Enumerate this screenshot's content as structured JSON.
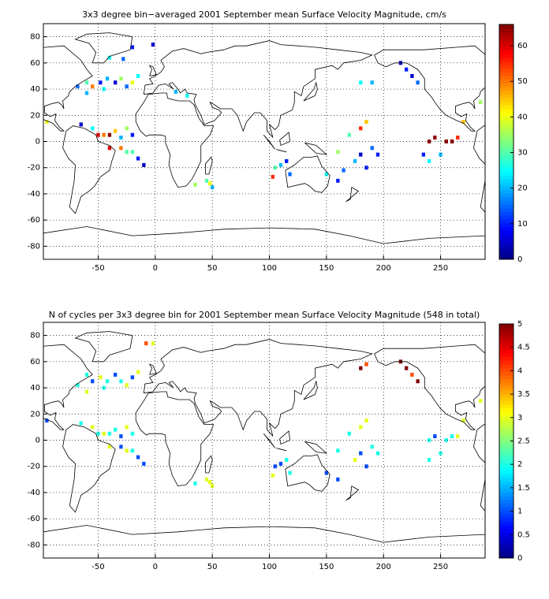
{
  "chart_data": [
    {
      "type": "grid-map",
      "title": "3x3 degree bin−averaged 2001 September mean Surface Velocity Magnitude, cm/s",
      "colormap": "jet",
      "grid": true,
      "xlim": [
        -98,
        289
      ],
      "ylim": [
        -90,
        90
      ],
      "xticks": [
        -50,
        0,
        50,
        100,
        150,
        200,
        250
      ],
      "yticks": [
        -80,
        -60,
        -40,
        -20,
        0,
        20,
        40,
        60,
        80
      ],
      "clim": [
        0,
        66
      ],
      "cticks": [
        0,
        10,
        20,
        30,
        40,
        50,
        60
      ],
      "x": [
        -40,
        -28,
        -20,
        -2,
        -60,
        -55,
        -48,
        -42,
        -35,
        -30,
        -25,
        -20,
        -15,
        -45,
        -60,
        -68,
        -95,
        -65,
        -55,
        -50,
        -45,
        -40,
        -35,
        -30,
        -25,
        -20,
        -40,
        -30,
        -25,
        -20,
        -15,
        -10,
        35,
        45,
        48,
        50,
        28,
        18,
        103,
        110,
        115,
        105,
        118,
        150,
        160,
        170,
        180,
        185,
        190,
        180,
        175,
        195,
        160,
        165,
        185,
        180,
        190,
        215,
        220,
        225,
        230,
        240,
        245,
        255,
        260,
        265,
        250,
        240,
        235,
        270,
        285
      ],
      "y": [
        64,
        63,
        72,
        74,
        45,
        42,
        45,
        48,
        45,
        48,
        42,
        45,
        50,
        40,
        37,
        42,
        15,
        13,
        10,
        5,
        5,
        5,
        8,
        3,
        10,
        5,
        -5,
        -5,
        -8,
        -8,
        -13,
        -18,
        -33,
        -30,
        -32,
        -35,
        35,
        38,
        -27,
        -18,
        -15,
        -20,
        -25,
        -25,
        -30,
        5,
        10,
        15,
        -5,
        -10,
        -15,
        -10,
        -8,
        -22,
        -20,
        45,
        45,
        60,
        55,
        50,
        45,
        0,
        3,
        0,
        0,
        3,
        -10,
        -15,
        -10,
        15,
        30
      ],
      "values": [
        25,
        15,
        10,
        5,
        30,
        50,
        10,
        20,
        5,
        35,
        15,
        40,
        25,
        25,
        20,
        15,
        40,
        5,
        25,
        60,
        50,
        65,
        45,
        20,
        35,
        10,
        60,
        50,
        30,
        30,
        10,
        5,
        35,
        30,
        40,
        20,
        25,
        20,
        55,
        20,
        10,
        30,
        15,
        25,
        10,
        30,
        55,
        45,
        15,
        5,
        20,
        10,
        35,
        15,
        10,
        25,
        20,
        5,
        10,
        5,
        15,
        65,
        65,
        65,
        65,
        55,
        20,
        25,
        10,
        45,
        35
      ]
    },
    {
      "type": "grid-map",
      "title": "N of cycles per 3x3 degree bin for 2001 September mean Surface Velocity Magnitude (548 in total)",
      "colormap": "jet",
      "grid": true,
      "xlim": [
        -98,
        289
      ],
      "ylim": [
        -90,
        90
      ],
      "xticks": [
        -50,
        0,
        50,
        100,
        150,
        200,
        250
      ],
      "yticks": [
        -80,
        -60,
        -40,
        -20,
        0,
        20,
        40,
        60,
        80
      ],
      "clim": [
        0,
        5
      ],
      "cticks": [
        0,
        0.5,
        1,
        1.5,
        2,
        2.5,
        3,
        3.5,
        4,
        4.5,
        5
      ],
      "x": [
        -8,
        -2,
        -60,
        -55,
        -48,
        -42,
        -35,
        -30,
        -25,
        -20,
        -15,
        -45,
        -60,
        -68,
        -95,
        -65,
        -55,
        -50,
        -45,
        -40,
        -35,
        -30,
        -25,
        -20,
        -40,
        -30,
        -25,
        -20,
        -15,
        -10,
        35,
        45,
        48,
        50,
        103,
        110,
        115,
        105,
        118,
        150,
        160,
        170,
        180,
        185,
        190,
        180,
        175,
        195,
        160,
        185,
        180,
        185,
        215,
        220,
        225,
        230,
        240,
        245,
        255,
        260,
        265,
        250,
        240,
        270,
        285
      ],
      "y": [
        74,
        74,
        50,
        45,
        48,
        45,
        50,
        45,
        42,
        48,
        52,
        40,
        37,
        42,
        15,
        13,
        10,
        5,
        5,
        5,
        8,
        3,
        10,
        5,
        -5,
        -5,
        -8,
        -8,
        -13,
        -18,
        -33,
        -30,
        -32,
        -35,
        -27,
        -18,
        -15,
        -20,
        -25,
        -25,
        -30,
        5,
        10,
        15,
        -5,
        -10,
        -15,
        -10,
        -8,
        -20,
        55,
        58,
        60,
        55,
        50,
        45,
        0,
        3,
        0,
        3,
        3,
        -10,
        -15,
        15,
        30
      ],
      "values": [
        4,
        3,
        2,
        1,
        3,
        2,
        1,
        2,
        3,
        1,
        3,
        2,
        3,
        2,
        1,
        2,
        3,
        2,
        3,
        2,
        2,
        1,
        3,
        2,
        3,
        1,
        3,
        2,
        1,
        1,
        2,
        3,
        3,
        3,
        3,
        1,
        2,
        1,
        2,
        1,
        1,
        2,
        3,
        3,
        2,
        1,
        3,
        2,
        2,
        1,
        5,
        4,
        5,
        5,
        4,
        5,
        2,
        1,
        2,
        2,
        3,
        2,
        2,
        3,
        3
      ]
    }
  ]
}
